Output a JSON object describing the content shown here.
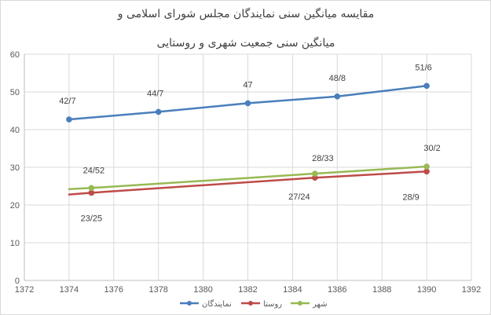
{
  "chart_data": {
    "type": "line",
    "title_lines": [
      "مقایسه میانگین سنی نمایندگان مجلس شورای اسلامی و",
      "میانگین سنی جمعیت شهری و روستایی"
    ],
    "xlim": [
      1372,
      1392
    ],
    "ylim": [
      0,
      60
    ],
    "x_ticks": [
      1372,
      1374,
      1376,
      1378,
      1380,
      1382,
      1384,
      1386,
      1388,
      1390,
      1392
    ],
    "y_ticks": [
      0,
      10,
      20,
      30,
      40,
      50,
      60
    ],
    "grid": true,
    "legend_position": "bottom",
    "series": [
      {
        "name": "نمایندگان",
        "color": "#4a7ebb",
        "x": [
          1374,
          1378,
          1382,
          1386,
          1390
        ],
        "values": [
          42.7,
          44.7,
          47,
          48.8,
          51.6
        ],
        "labels": [
          "42/7",
          "44/7",
          "47",
          "48/8",
          "51/6"
        ]
      },
      {
        "name": "روستا",
        "color": "#be4b48",
        "x": [
          1374,
          1375,
          1385,
          1390
        ],
        "values": [
          22.8,
          23.25,
          27.24,
          28.9
        ],
        "labels": [
          null,
          "23/25",
          "27/24",
          "28/9"
        ]
      },
      {
        "name": "شهر",
        "color": "#98b954",
        "x": [
          1374,
          1375,
          1385,
          1390
        ],
        "values": [
          24.2,
          24.52,
          28.33,
          30.2
        ],
        "labels": [
          null,
          "24/52",
          "28/33",
          "30/2"
        ]
      }
    ]
  }
}
